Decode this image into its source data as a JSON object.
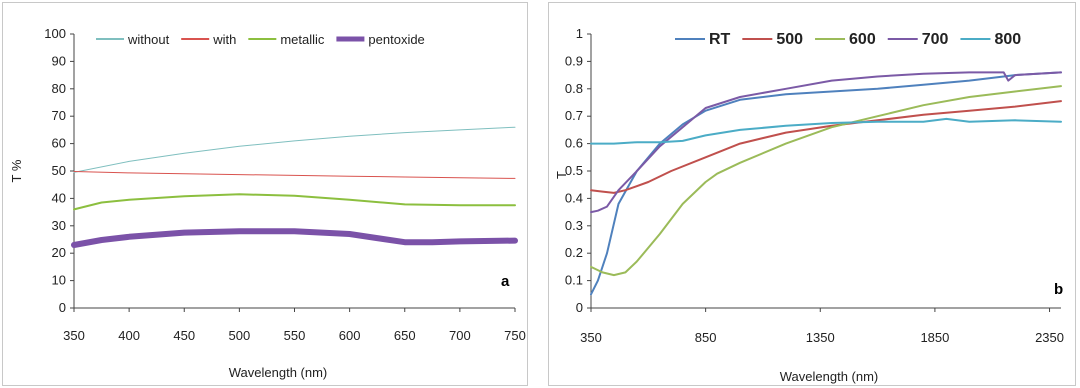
{
  "chart_data": [
    {
      "type": "line",
      "panel_label": "a",
      "xlabel": "Wavelength (nm)",
      "ylabel": "T %",
      "xlim": [
        350,
        750
      ],
      "ylim": [
        0,
        100
      ],
      "x_ticks": [
        "350",
        "400",
        "450",
        "500",
        "550",
        "600",
        "650",
        "700",
        "750"
      ],
      "y_ticks": [
        "0",
        "10",
        "20",
        "30",
        "40",
        "50",
        "60",
        "70",
        "80",
        "90",
        "100"
      ],
      "grid": false,
      "legend_position": "top",
      "series": [
        {
          "name": "without",
          "color": "#7fbfbf",
          "width": 1,
          "x": [
            350,
            400,
            450,
            500,
            550,
            600,
            650,
            700,
            750
          ],
          "y": [
            49.5,
            53.5,
            56.5,
            59,
            61,
            62.7,
            64,
            65,
            66
          ]
        },
        {
          "name": "with",
          "color": "#d9534f",
          "width": 1,
          "x": [
            350,
            400,
            450,
            500,
            550,
            600,
            650,
            700,
            750
          ],
          "y": [
            49.8,
            49.3,
            49,
            48.7,
            48.4,
            48.1,
            47.8,
            47.5,
            47.3
          ]
        },
        {
          "name": "metallic",
          "color": "#8cbf3f",
          "width": 2,
          "x": [
            350,
            375,
            400,
            450,
            500,
            550,
            600,
            650,
            700,
            750
          ],
          "y": [
            36,
            38.5,
            39.5,
            40.8,
            41.5,
            41,
            39.5,
            37.8,
            37.5,
            37.5
          ]
        },
        {
          "name": "pentoxide",
          "color": "#7b52a8",
          "width": 6,
          "x": [
            350,
            375,
            400,
            450,
            500,
            550,
            600,
            625,
            650,
            675,
            700,
            750
          ],
          "y": [
            23,
            24.8,
            26,
            27.5,
            28,
            28,
            27,
            25.5,
            24,
            24,
            24.3,
            24.6
          ]
        }
      ]
    },
    {
      "type": "line",
      "panel_label": "b",
      "xlabel": "Wavelength (nm)",
      "ylabel": "T",
      "xlim": [
        350,
        2400
      ],
      "ylim": [
        0,
        1
      ],
      "x_ticks": [
        "350",
        "850",
        "1350",
        "1850",
        "2350"
      ],
      "y_ticks": [
        "0",
        "0.1",
        "0.2",
        "0.3",
        "0.4",
        "0.5",
        "0.6",
        "0.7",
        "0.8",
        "0.9",
        "1"
      ],
      "grid": false,
      "legend_position": "top",
      "series": [
        {
          "name": "RT",
          "color": "#4f81bd",
          "width": 2,
          "x": [
            350,
            380,
            420,
            470,
            550,
            650,
            750,
            850,
            1000,
            1200,
            1400,
            1600,
            1800,
            2000,
            2200,
            2400
          ],
          "y": [
            0.05,
            0.1,
            0.2,
            0.38,
            0.5,
            0.6,
            0.67,
            0.72,
            0.76,
            0.78,
            0.79,
            0.8,
            0.815,
            0.83,
            0.85,
            0.86
          ]
        },
        {
          "name": "500",
          "color": "#c0504d",
          "width": 2,
          "x": [
            350,
            400,
            450,
            500,
            600,
            700,
            850,
            1000,
            1200,
            1400,
            1600,
            1800,
            2000,
            2200,
            2400
          ],
          "y": [
            0.43,
            0.425,
            0.42,
            0.43,
            0.46,
            0.5,
            0.55,
            0.6,
            0.64,
            0.665,
            0.685,
            0.705,
            0.72,
            0.735,
            0.755
          ]
        },
        {
          "name": "600",
          "color": "#9bbb59",
          "width": 2,
          "x": [
            350,
            400,
            450,
            500,
            550,
            650,
            750,
            850,
            900,
            1000,
            1200,
            1400,
            1600,
            1800,
            2000,
            2200,
            2400
          ],
          "y": [
            0.15,
            0.13,
            0.12,
            0.13,
            0.17,
            0.27,
            0.38,
            0.46,
            0.49,
            0.53,
            0.6,
            0.66,
            0.7,
            0.74,
            0.77,
            0.79,
            0.81
          ]
        },
        {
          "name": "700",
          "color": "#7b5aa6",
          "width": 2,
          "x": [
            350,
            380,
            420,
            470,
            550,
            650,
            750,
            850,
            1000,
            1200,
            1400,
            1600,
            1800,
            2000,
            2150,
            2170,
            2200,
            2400
          ],
          "y": [
            0.35,
            0.355,
            0.37,
            0.43,
            0.5,
            0.59,
            0.66,
            0.73,
            0.77,
            0.8,
            0.83,
            0.845,
            0.855,
            0.86,
            0.86,
            0.83,
            0.85,
            0.86
          ]
        },
        {
          "name": "800",
          "color": "#4bacc6",
          "width": 2,
          "x": [
            350,
            450,
            550,
            650,
            750,
            850,
            1000,
            1200,
            1400,
            1600,
            1800,
            1900,
            2000,
            2200,
            2400
          ],
          "y": [
            0.6,
            0.6,
            0.605,
            0.605,
            0.61,
            0.63,
            0.65,
            0.665,
            0.675,
            0.68,
            0.68,
            0.69,
            0.68,
            0.685,
            0.68
          ]
        }
      ]
    }
  ]
}
